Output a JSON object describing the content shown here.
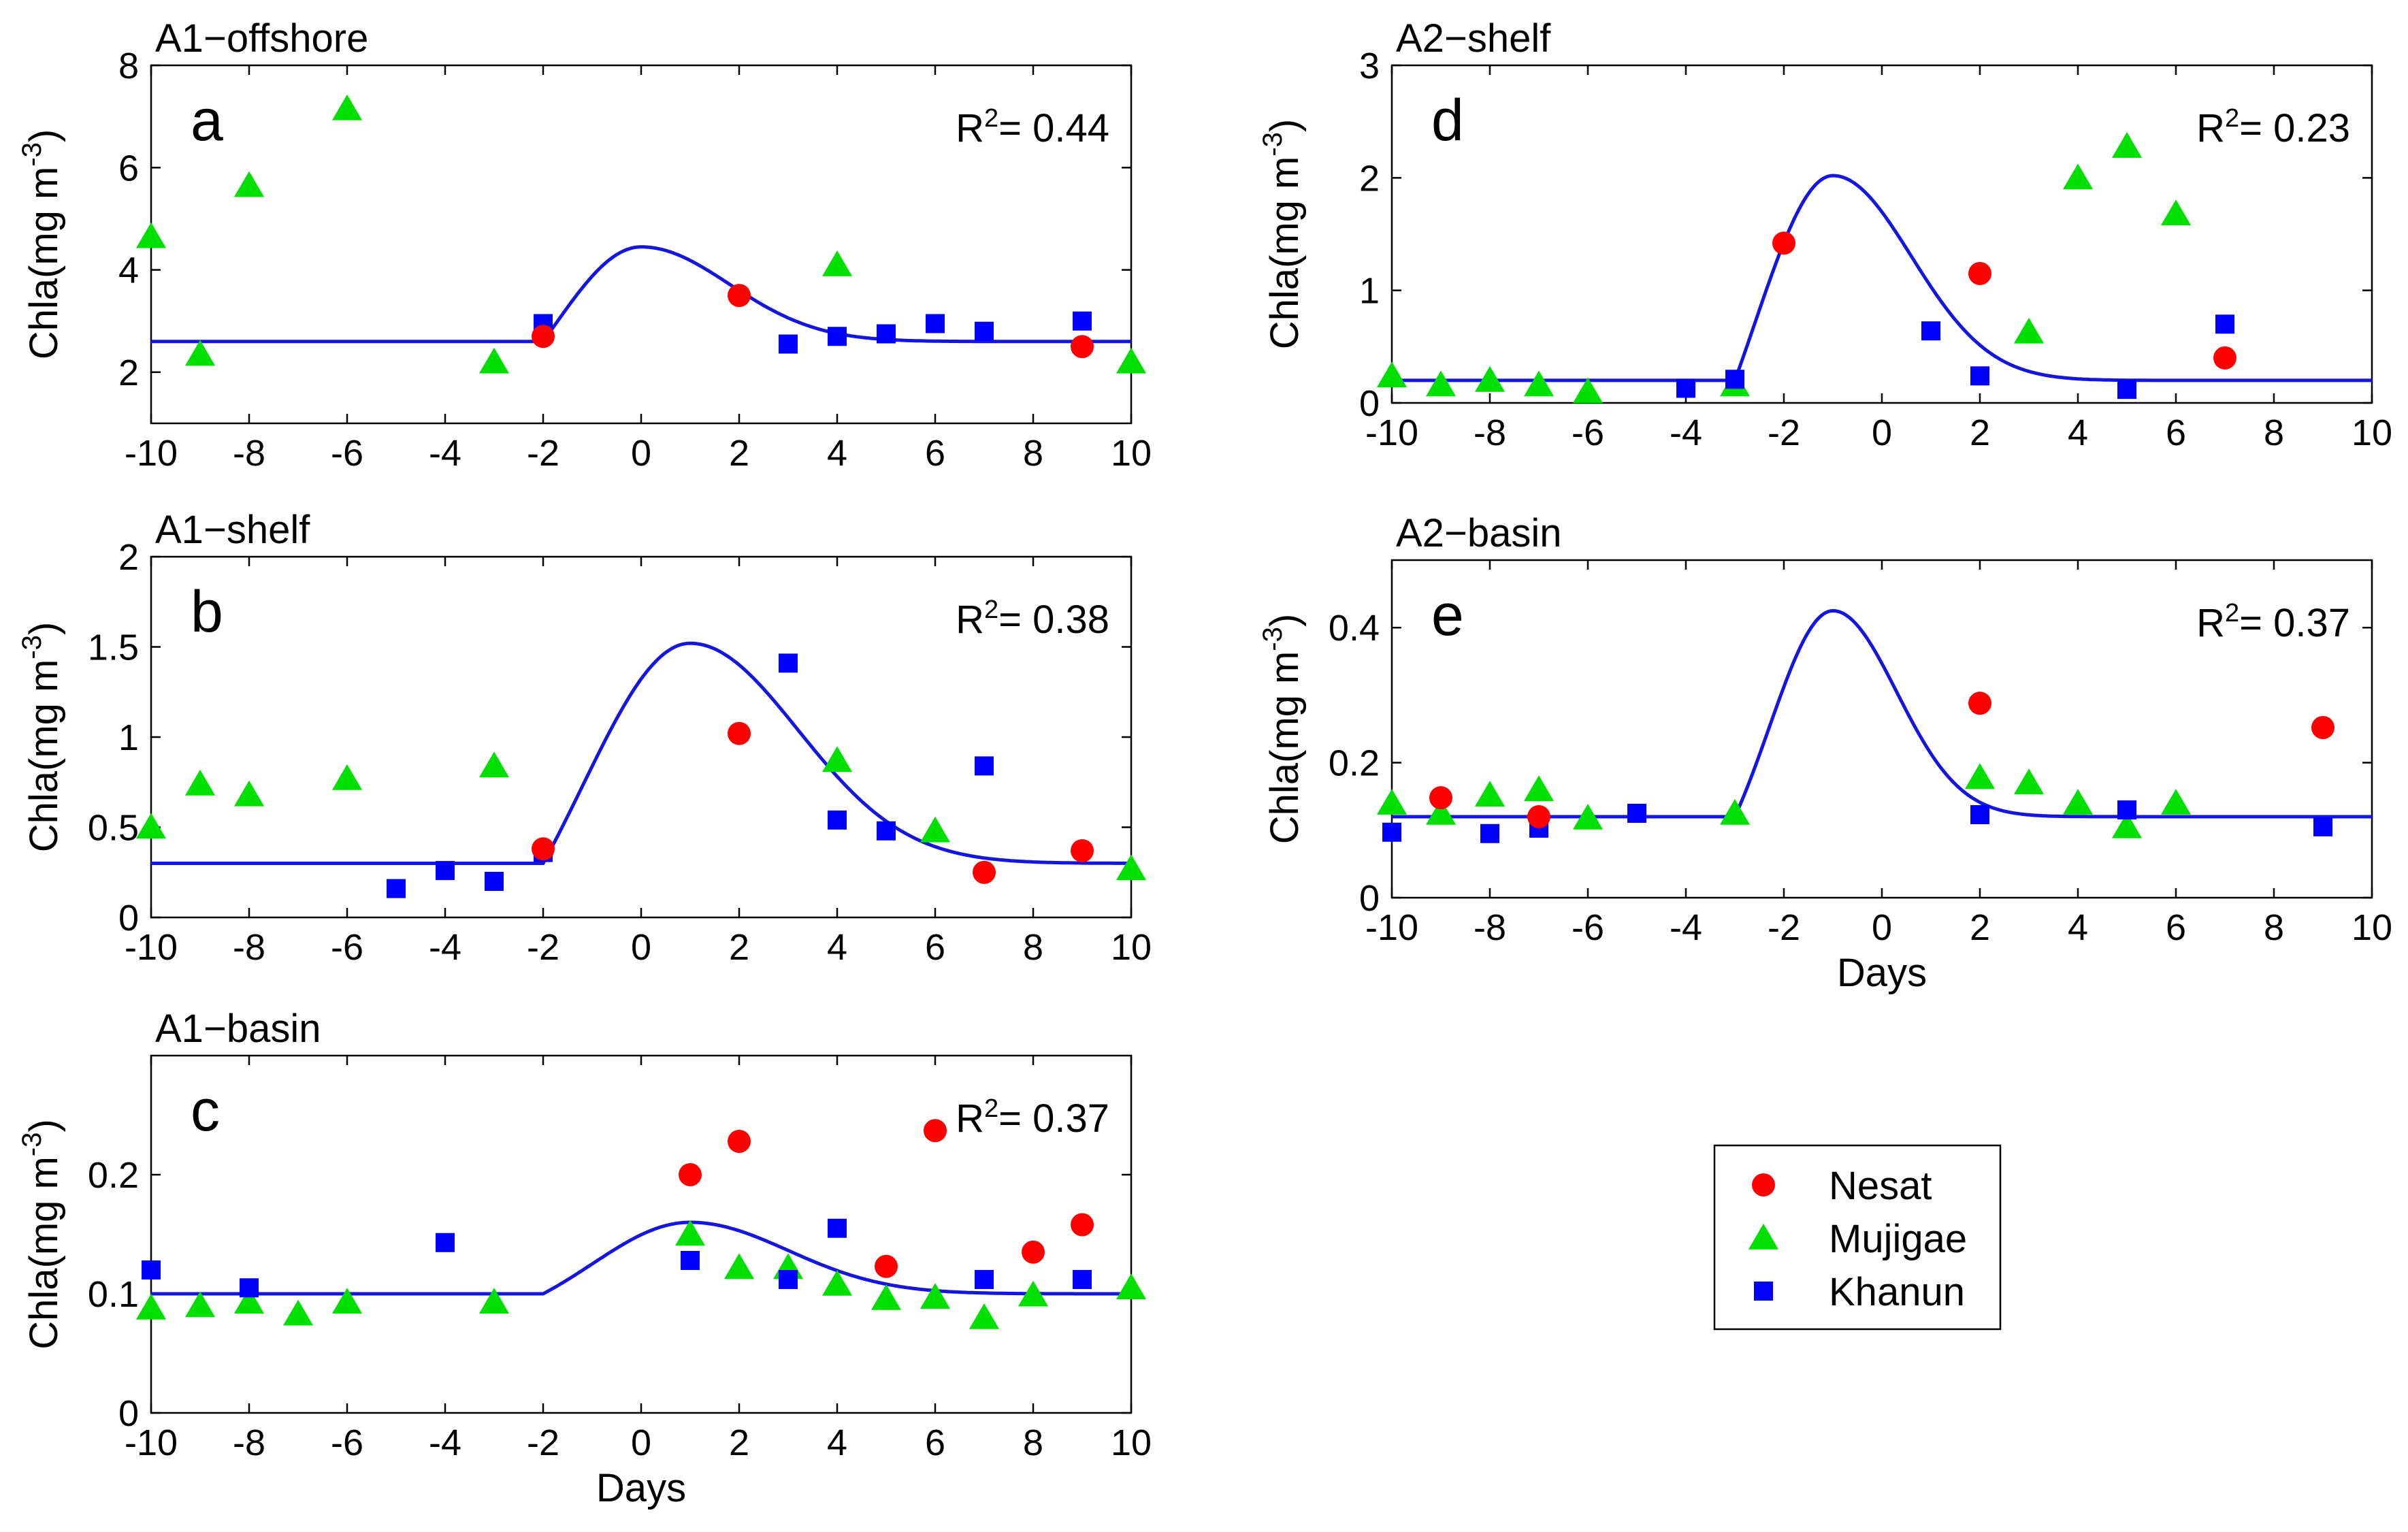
{
  "colors": {
    "nesat": "#ff0000",
    "mujigae": "#00e000",
    "khanun": "#0000ff",
    "fit": "#1515e0"
  },
  "legend": {
    "items": [
      {
        "name": "Nesat",
        "key": "nesat",
        "marker": "circle"
      },
      {
        "name": "Mujigae",
        "key": "mujigae",
        "marker": "triangle"
      },
      {
        "name": "Khanun",
        "key": "khanun",
        "marker": "square"
      }
    ]
  },
  "chart_data": [
    {
      "id": "a",
      "type": "scatter",
      "title": "A1−offshore",
      "letter": "a",
      "r2": "0.44",
      "xlabel": "",
      "ylabel": "Chla(mg m-3)",
      "xlim": [
        -10,
        10
      ],
      "ylim": [
        1,
        8
      ],
      "xticks": [
        -10,
        -8,
        -6,
        -4,
        -2,
        0,
        2,
        4,
        6,
        8,
        10
      ],
      "yticks": [
        2,
        4,
        6,
        8
      ],
      "xtick_labels": [
        "-10",
        "-8",
        "-6",
        "-4",
        "-2",
        "0",
        "2",
        "4",
        "6",
        "8",
        "10"
      ],
      "ytick_labels": [
        "2",
        "4",
        "6",
        "8"
      ],
      "fit": {
        "base": 2.6,
        "peak": 4.45,
        "start": -2,
        "peak_x": 0,
        "sigma": 1.8
      },
      "series": [
        {
          "name": "Nesat",
          "x": [
            -2,
            2,
            9
          ],
          "y": [
            2.7,
            3.5,
            2.5
          ]
        },
        {
          "name": "Mujigae",
          "x": [
            -10,
            -9,
            -8,
            -6,
            -3,
            4,
            10
          ],
          "y": [
            4.65,
            2.35,
            5.65,
            7.15,
            2.2,
            4.1,
            2.2
          ]
        },
        {
          "name": "Khanun",
          "x": [
            -2,
            3,
            4,
            5,
            6,
            7,
            9
          ],
          "y": [
            2.95,
            2.55,
            2.7,
            2.75,
            2.95,
            2.8,
            3.0
          ]
        }
      ]
    },
    {
      "id": "b",
      "type": "scatter",
      "title": "A1−shelf",
      "letter": "b",
      "r2": "0.38",
      "xlabel": "",
      "ylabel": "Chla(mg m-3)",
      "xlim": [
        -10,
        10
      ],
      "ylim": [
        0,
        2
      ],
      "xticks": [
        -10,
        -8,
        -6,
        -4,
        -2,
        0,
        2,
        4,
        6,
        8,
        10
      ],
      "yticks": [
        0,
        0.5,
        1,
        1.5,
        2
      ],
      "xtick_labels": [
        "-10",
        "-8",
        "-6",
        "-4",
        "-2",
        "0",
        "2",
        "4",
        "6",
        "8",
        "10"
      ],
      "ytick_labels": [
        "0",
        "0.5",
        "1",
        "1.5",
        "2"
      ],
      "fit": {
        "base": 0.3,
        "peak": 1.52,
        "start": -2,
        "peak_x": 1,
        "sigma": 2.2
      },
      "series": [
        {
          "name": "Nesat",
          "x": [
            -2,
            2,
            7,
            9
          ],
          "y": [
            0.38,
            1.02,
            0.25,
            0.37
          ]
        },
        {
          "name": "Mujigae",
          "x": [
            -10,
            -9,
            -8,
            -6,
            -3,
            4,
            6,
            10
          ],
          "y": [
            0.5,
            0.74,
            0.68,
            0.77,
            0.84,
            0.87,
            0.48,
            0.27
          ]
        },
        {
          "name": "Khanun",
          "x": [
            -5,
            -4,
            -3,
            -2,
            3,
            4,
            5,
            7
          ],
          "y": [
            0.16,
            0.26,
            0.2,
            0.36,
            1.41,
            0.54,
            0.48,
            0.84
          ]
        }
      ]
    },
    {
      "id": "c",
      "type": "scatter",
      "title": "A1−basin",
      "letter": "c",
      "r2": "0.37",
      "xlabel": "Days",
      "ylabel": "Chla(mg m-3)",
      "xlim": [
        -10,
        10
      ],
      "ylim": [
        0,
        0.3
      ],
      "xticks": [
        -10,
        -8,
        -6,
        -4,
        -2,
        0,
        2,
        4,
        6,
        8,
        10
      ],
      "yticks": [
        0,
        0.1,
        0.2
      ],
      "xtick_labels": [
        "-10",
        "-8",
        "-6",
        "-4",
        "-2",
        "0",
        "2",
        "4",
        "6",
        "8",
        "10"
      ],
      "ytick_labels": [
        "0",
        "0.1",
        "0.2"
      ],
      "fit": {
        "base": 0.1,
        "peak": 0.16,
        "start": -2,
        "peak_x": 1,
        "sigma": 2.0
      },
      "series": [
        {
          "name": "Nesat",
          "x": [
            1,
            2,
            5,
            6,
            8,
            9
          ],
          "y": [
            0.2,
            0.228,
            0.123,
            0.237,
            0.135,
            0.158
          ]
        },
        {
          "name": "Mujigae",
          "x": [
            -10,
            -9,
            -8,
            -7,
            -6,
            -3,
            1,
            2,
            3,
            4,
            5,
            6,
            7,
            8,
            10
          ],
          "y": [
            0.088,
            0.09,
            0.093,
            0.083,
            0.093,
            0.093,
            0.15,
            0.122,
            0.122,
            0.108,
            0.096,
            0.097,
            0.08,
            0.099,
            0.105
          ]
        },
        {
          "name": "Khanun",
          "x": [
            -10,
            -8,
            -4,
            1,
            3,
            4,
            7,
            9
          ],
          "y": [
            0.12,
            0.105,
            0.143,
            0.128,
            0.112,
            0.155,
            0.112,
            0.112
          ]
        }
      ]
    },
    {
      "id": "d",
      "type": "scatter",
      "title": "A2−shelf",
      "letter": "d",
      "r2": "0.23",
      "xlabel": "",
      "ylabel": "Chla(mg m-3)",
      "xlim": [
        -10,
        10
      ],
      "ylim": [
        0,
        3
      ],
      "xticks": [
        -10,
        -8,
        -6,
        -4,
        -2,
        0,
        2,
        4,
        6,
        8,
        10
      ],
      "yticks": [
        0,
        1,
        2,
        3
      ],
      "xtick_labels": [
        "-10",
        "-8",
        "-6",
        "-4",
        "-2",
        "0",
        "2",
        "4",
        "6",
        "8",
        "10"
      ],
      "ytick_labels": [
        "0",
        "1",
        "2",
        "3"
      ],
      "fit": {
        "base": 0.2,
        "peak": 2.02,
        "start": -3,
        "peak_x": -1,
        "sigma": 1.6
      },
      "series": [
        {
          "name": "Nesat",
          "x": [
            -2,
            2,
            7
          ],
          "y": [
            1.42,
            1.15,
            0.4
          ]
        },
        {
          "name": "Mujigae",
          "x": [
            -10,
            -9,
            -8,
            -7,
            -6,
            -3,
            3,
            4,
            5,
            6
          ],
          "y": [
            0.24,
            0.16,
            0.2,
            0.16,
            0.1,
            0.16,
            0.63,
            2.0,
            2.28,
            1.68
          ]
        },
        {
          "name": "Khanun",
          "x": [
            -4,
            -3,
            1,
            2,
            5,
            7
          ],
          "y": [
            0.13,
            0.21,
            0.64,
            0.24,
            0.12,
            0.7
          ]
        }
      ]
    },
    {
      "id": "e",
      "type": "scatter",
      "title": "A2−basin",
      "letter": "e",
      "r2": "0.37",
      "xlabel": "Days",
      "ylabel": "Chla(mg m-3)",
      "xlim": [
        -10,
        10
      ],
      "ylim": [
        0,
        0.5
      ],
      "xticks": [
        -10,
        -8,
        -6,
        -4,
        -2,
        0,
        2,
        4,
        6,
        8,
        10
      ],
      "yticks": [
        0,
        0.2,
        0.4
      ],
      "xtick_labels": [
        "-10",
        "-8",
        "-6",
        "-4",
        "-2",
        "0",
        "2",
        "4",
        "6",
        "8",
        "10"
      ],
      "ytick_labels": [
        "0",
        "0.2",
        "0.4"
      ],
      "fit": {
        "base": 0.12,
        "peak": 0.425,
        "start": -3,
        "peak_x": -1,
        "sigma": 1.3
      },
      "series": [
        {
          "name": "Nesat",
          "x": [
            -9,
            -7,
            2,
            9
          ],
          "y": [
            0.148,
            0.12,
            0.288,
            0.252
          ]
        },
        {
          "name": "Mujigae",
          "x": [
            -10,
            -9,
            -8,
            -7,
            -6,
            -3,
            2,
            3,
            4,
            5,
            6
          ],
          "y": [
            0.14,
            0.125,
            0.152,
            0.16,
            0.118,
            0.125,
            0.178,
            0.17,
            0.14,
            0.105,
            0.14
          ]
        },
        {
          "name": "Khanun",
          "x": [
            -10,
            -8,
            -7,
            -5,
            2,
            5,
            9
          ],
          "y": [
            0.097,
            0.095,
            0.103,
            0.125,
            0.123,
            0.13,
            0.105
          ]
        }
      ]
    }
  ]
}
